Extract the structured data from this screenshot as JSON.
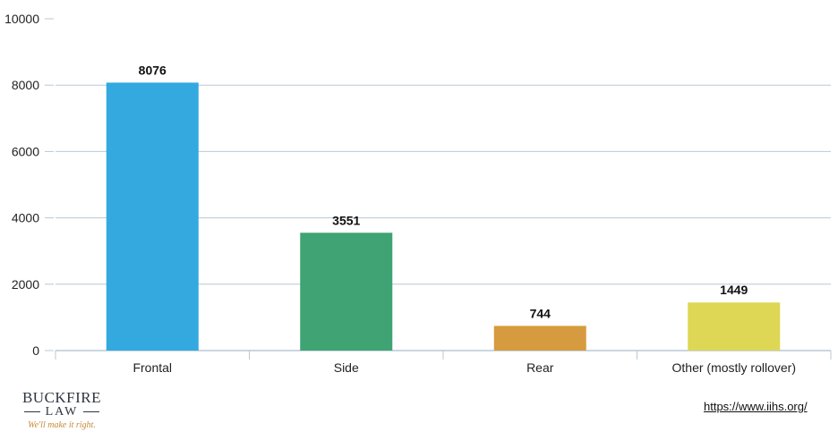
{
  "chart_data": {
    "type": "bar",
    "categories": [
      "Frontal",
      "Side",
      "Rear",
      "Other (mostly rollover)"
    ],
    "values": [
      8076,
      3551,
      744,
      1449
    ],
    "data_labels": [
      "8076",
      "3551",
      "744",
      "1449"
    ],
    "colors": [
      "#33a9e0",
      "#3fa373",
      "#d69b3e",
      "#ddd755"
    ],
    "ylim": [
      0,
      10000
    ],
    "yticks": [
      0,
      2000,
      4000,
      6000,
      8000,
      10000
    ],
    "ytick_labels": [
      "0",
      "2000",
      "4000",
      "6000",
      "8000",
      "10000"
    ],
    "grid": true,
    "grid_color": "#b9c8d6",
    "title": "",
    "xlabel": "",
    "ylabel": ""
  },
  "logo": {
    "line1": "BUCKFIRE",
    "line2": "LAW",
    "tagline": "We'll make it right."
  },
  "source": {
    "url_text": "https://www.iihs.org/"
  }
}
